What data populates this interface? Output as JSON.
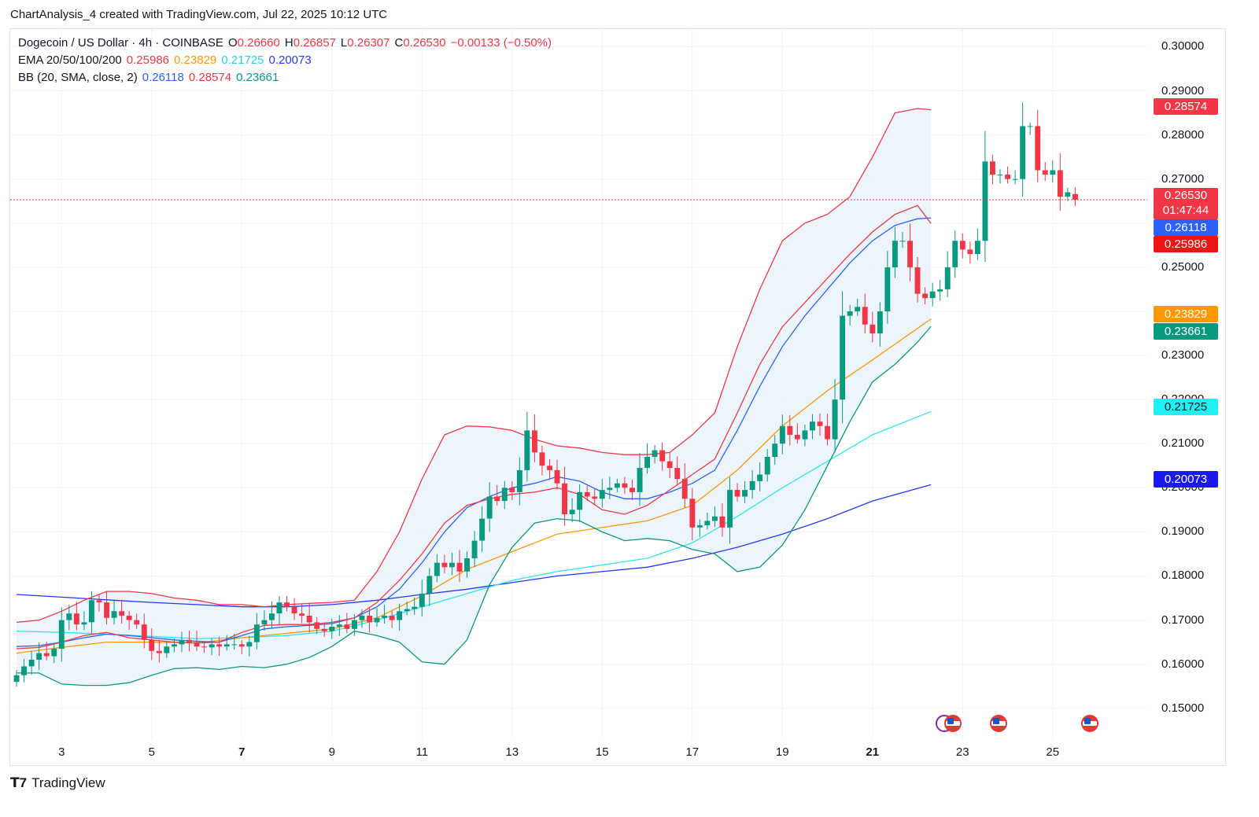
{
  "header": {
    "credit": "ChartAnalysis_4 created with TradingView.com, Jul 22, 2025 10:12 UTC"
  },
  "legend": {
    "symbol": "Dogecoin / US Dollar · 4h · COINBASE",
    "o_label": "O",
    "o_value": "0.26660",
    "h_label": "H",
    "h_value": "0.26857",
    "l_label": "L",
    "l_value": "0.26307",
    "c_label": "C",
    "c_value": "0.26530",
    "change": "−0.00133 (−0.50%)",
    "ema_label": "EMA 20/50/100/200",
    "ema20": "0.25986",
    "ema50": "0.23829",
    "ema100": "0.21725",
    "ema200": "0.20073",
    "bb_label": "BB (20, SMA, close, 2)",
    "bb_basis": "0.26118",
    "bb_upper": "0.28574",
    "bb_lower": "0.23661"
  },
  "price_labels": {
    "bb_upper": "0.28574",
    "last": "0.26530",
    "countdown": "01:47:44",
    "bb_basis": "0.26118",
    "ema20": "0.25986",
    "ema50": "0.23829",
    "bb_lower": "0.23661",
    "ema100": "0.21725",
    "ema200": "0.20073"
  },
  "colors": {
    "up": "#089981",
    "down": "#f23645",
    "ema20": "#f23645",
    "ema50": "#ff9800",
    "ema100": "#2ee6f0",
    "ema200": "#2736ff",
    "bb_basis": "#2962ff",
    "bb_upper": "#f23645",
    "bb_lower": "#089981",
    "bb_fill": "#eaf3fb"
  },
  "footer": {
    "brand": "TradingView"
  },
  "chart_data": {
    "type": "candlestick",
    "y_ticks": [
      "0.30000",
      "0.29000",
      "0.28000",
      "0.27000",
      "0.26000",
      "0.25000",
      "0.24000",
      "0.23000",
      "0.22000",
      "0.21000",
      "0.20000",
      "0.19000",
      "0.18000",
      "0.17000",
      "0.16000",
      "0.15000"
    ],
    "x_ticks": [
      {
        "label": "3",
        "day": 3,
        "bold": false
      },
      {
        "label": "5",
        "day": 5,
        "bold": false
      },
      {
        "label": "7",
        "day": 7,
        "bold": true
      },
      {
        "label": "9",
        "day": 9,
        "bold": false
      },
      {
        "label": "11",
        "day": 11,
        "bold": false
      },
      {
        "label": "13",
        "day": 13,
        "bold": false
      },
      {
        "label": "15",
        "day": 15,
        "bold": false
      },
      {
        "label": "17",
        "day": 17,
        "bold": false
      },
      {
        "label": "19",
        "day": 19,
        "bold": false
      },
      {
        "label": "21",
        "day": 21,
        "bold": true
      },
      {
        "label": "23",
        "day": 23,
        "bold": false
      },
      {
        "label": "25",
        "day": 25,
        "bold": false
      }
    ],
    "ylim": [
      0.143,
      0.304
    ],
    "xlim_days": [
      1.86,
      27.1
    ],
    "first_candle_day": 2.0,
    "candle_step_days": 0.16667,
    "last_price": 0.2653,
    "closes": [
      0.1575,
      0.1595,
      0.161,
      0.1625,
      0.1618,
      0.1635,
      0.17,
      0.1715,
      0.169,
      0.1695,
      0.1745,
      0.174,
      0.1705,
      0.172,
      0.171,
      0.17,
      0.169,
      0.1655,
      0.163,
      0.1625,
      0.164,
      0.1645,
      0.1655,
      0.165,
      0.164,
      0.1638,
      0.1645,
      0.164,
      0.1645,
      0.1645,
      0.164,
      0.165,
      0.169,
      0.17,
      0.1715,
      0.174,
      0.173,
      0.1715,
      0.171,
      0.1695,
      0.168,
      0.1675,
      0.1685,
      0.169,
      0.168,
      0.17,
      0.171,
      0.1695,
      0.1705,
      0.171,
      0.17,
      0.172,
      0.1725,
      0.173,
      0.176,
      0.18,
      0.183,
      0.182,
      0.183,
      0.181,
      0.184,
      0.188,
      0.193,
      0.198,
      0.197,
      0.2,
      0.199,
      0.204,
      0.213,
      0.208,
      0.205,
      0.204,
      0.201,
      0.194,
      0.195,
      0.199,
      0.198,
      0.1975,
      0.1995,
      0.2,
      0.201,
      0.2,
      0.199,
      0.2045,
      0.207,
      0.2085,
      0.206,
      0.2045,
      0.202,
      0.1975,
      0.191,
      0.1915,
      0.1925,
      0.1935,
      0.191,
      0.1995,
      0.198,
      0.1995,
      0.2015,
      0.203,
      0.207,
      0.21,
      0.214,
      0.212,
      0.211,
      0.213,
      0.215,
      0.214,
      0.211,
      0.22,
      0.239,
      0.24,
      0.241,
      0.237,
      0.235,
      0.24,
      0.25,
      0.256,
      0.256,
      0.25,
      0.244,
      0.243,
      0.2445,
      0.245,
      0.25,
      0.256,
      0.254,
      0.253,
      0.256,
      0.274,
      0.271,
      0.271,
      0.27,
      0.27,
      0.282,
      0.282,
      0.272,
      0.271,
      0.272,
      0.266,
      0.267,
      0.2653
    ],
    "ema20": [
      [
        2.0,
        0.1635
      ],
      [
        2.5,
        0.1638
      ],
      [
        3.0,
        0.165
      ],
      [
        3.5,
        0.1665
      ],
      [
        4.0,
        0.1672
      ],
      [
        4.5,
        0.166
      ],
      [
        5.0,
        0.1655
      ],
      [
        5.5,
        0.165
      ],
      [
        6.0,
        0.1648
      ],
      [
        6.5,
        0.165
      ],
      [
        7.0,
        0.1672
      ],
      [
        7.5,
        0.1688
      ],
      [
        8.0,
        0.169
      ],
      [
        8.5,
        0.169
      ],
      [
        9.0,
        0.1695
      ],
      [
        9.5,
        0.1705
      ],
      [
        10.0,
        0.174
      ],
      [
        10.5,
        0.179
      ],
      [
        11.0,
        0.185
      ],
      [
        11.5,
        0.192
      ],
      [
        12.0,
        0.196
      ],
      [
        12.5,
        0.1975
      ],
      [
        13.0,
        0.1985
      ],
      [
        13.5,
        0.199
      ],
      [
        14.0,
        0.2
      ],
      [
        14.5,
        0.1985
      ],
      [
        15.0,
        0.195
      ],
      [
        15.5,
        0.194
      ],
      [
        16.0,
        0.196
      ],
      [
        16.5,
        0.1995
      ],
      [
        17.0,
        0.203
      ],
      [
        17.5,
        0.2065
      ],
      [
        18.0,
        0.217
      ],
      [
        18.5,
        0.228
      ],
      [
        19.0,
        0.2365
      ],
      [
        19.5,
        0.242
      ],
      [
        20.0,
        0.2475
      ],
      [
        20.5,
        0.253
      ],
      [
        21.0,
        0.258
      ],
      [
        21.5,
        0.262
      ],
      [
        22.0,
        0.264
      ],
      [
        22.3,
        0.2599
      ]
    ],
    "ema50": [
      [
        2.0,
        0.1625
      ],
      [
        3.0,
        0.1638
      ],
      [
        4.0,
        0.165
      ],
      [
        5.0,
        0.165
      ],
      [
        6.0,
        0.1648
      ],
      [
        7.0,
        0.166
      ],
      [
        8.0,
        0.167
      ],
      [
        9.0,
        0.168
      ],
      [
        10.0,
        0.1705
      ],
      [
        11.0,
        0.1755
      ],
      [
        12.0,
        0.1815
      ],
      [
        13.0,
        0.1855
      ],
      [
        14.0,
        0.1895
      ],
      [
        15.0,
        0.191
      ],
      [
        16.0,
        0.1925
      ],
      [
        17.0,
        0.196
      ],
      [
        18.0,
        0.204
      ],
      [
        19.0,
        0.214
      ],
      [
        20.0,
        0.222
      ],
      [
        21.0,
        0.229
      ],
      [
        22.3,
        0.2383
      ]
    ],
    "ema100": [
      [
        2.0,
        0.1675
      ],
      [
        3.0,
        0.1672
      ],
      [
        4.0,
        0.1668
      ],
      [
        5.0,
        0.1663
      ],
      [
        6.0,
        0.1658
      ],
      [
        7.0,
        0.166
      ],
      [
        8.0,
        0.1665
      ],
      [
        9.0,
        0.1675
      ],
      [
        10.0,
        0.17
      ],
      [
        11.0,
        0.173
      ],
      [
        12.0,
        0.176
      ],
      [
        13.0,
        0.179
      ],
      [
        14.0,
        0.181
      ],
      [
        15.0,
        0.1825
      ],
      [
        16.0,
        0.184
      ],
      [
        17.0,
        0.1875
      ],
      [
        18.0,
        0.1935
      ],
      [
        19.0,
        0.2
      ],
      [
        20.0,
        0.206
      ],
      [
        21.0,
        0.212
      ],
      [
        22.3,
        0.2173
      ]
    ],
    "ema200": [
      [
        2.0,
        0.1758
      ],
      [
        3.0,
        0.1752
      ],
      [
        4.0,
        0.1746
      ],
      [
        5.0,
        0.174
      ],
      [
        6.0,
        0.1735
      ],
      [
        7.0,
        0.173
      ],
      [
        8.0,
        0.173
      ],
      [
        9.0,
        0.1735
      ],
      [
        10.0,
        0.1745
      ],
      [
        11.0,
        0.1758
      ],
      [
        12.0,
        0.177
      ],
      [
        13.0,
        0.1785
      ],
      [
        14.0,
        0.18
      ],
      [
        15.0,
        0.181
      ],
      [
        16.0,
        0.182
      ],
      [
        17.0,
        0.184
      ],
      [
        18.0,
        0.1865
      ],
      [
        19.0,
        0.1895
      ],
      [
        20.0,
        0.193
      ],
      [
        21.0,
        0.197
      ],
      [
        22.3,
        0.2007
      ]
    ],
    "bb_upper": [
      [
        2.0,
        0.1695
      ],
      [
        2.5,
        0.17
      ],
      [
        3.0,
        0.172
      ],
      [
        3.5,
        0.1745
      ],
      [
        4.0,
        0.1765
      ],
      [
        4.5,
        0.1765
      ],
      [
        5.0,
        0.176
      ],
      [
        5.5,
        0.175
      ],
      [
        6.0,
        0.1745
      ],
      [
        6.5,
        0.1735
      ],
      [
        7.0,
        0.1735
      ],
      [
        7.5,
        0.173
      ],
      [
        8.0,
        0.1735
      ],
      [
        8.5,
        0.1738
      ],
      [
        9.0,
        0.174
      ],
      [
        9.5,
        0.1745
      ],
      [
        10.0,
        0.181
      ],
      [
        10.5,
        0.19
      ],
      [
        11.0,
        0.202
      ],
      [
        11.5,
        0.212
      ],
      [
        12.0,
        0.214
      ],
      [
        12.5,
        0.2138
      ],
      [
        13.0,
        0.213
      ],
      [
        13.5,
        0.211
      ],
      [
        14.0,
        0.2095
      ],
      [
        14.5,
        0.209
      ],
      [
        15.0,
        0.208
      ],
      [
        15.5,
        0.2075
      ],
      [
        16.0,
        0.2075
      ],
      [
        16.5,
        0.208
      ],
      [
        17.0,
        0.212
      ],
      [
        17.5,
        0.217
      ],
      [
        18.0,
        0.232
      ],
      [
        18.5,
        0.245
      ],
      [
        19.0,
        0.256
      ],
      [
        19.5,
        0.26
      ],
      [
        20.0,
        0.262
      ],
      [
        20.5,
        0.266
      ],
      [
        21.0,
        0.275
      ],
      [
        21.5,
        0.285
      ],
      [
        22.0,
        0.286
      ],
      [
        22.3,
        0.2857
      ]
    ],
    "bb_basis": [
      [
        2.0,
        0.164
      ],
      [
        2.5,
        0.1642
      ],
      [
        3.0,
        0.165
      ],
      [
        3.5,
        0.166
      ],
      [
        4.0,
        0.1668
      ],
      [
        4.5,
        0.1665
      ],
      [
        5.0,
        0.166
      ],
      [
        5.5,
        0.1655
      ],
      [
        6.0,
        0.1652
      ],
      [
        6.5,
        0.165
      ],
      [
        7.0,
        0.1665
      ],
      [
        7.5,
        0.168
      ],
      [
        8.0,
        0.1685
      ],
      [
        8.5,
        0.1688
      ],
      [
        9.0,
        0.1692
      ],
      [
        9.5,
        0.1705
      ],
      [
        10.0,
        0.173
      ],
      [
        10.5,
        0.177
      ],
      [
        11.0,
        0.183
      ],
      [
        11.5,
        0.19
      ],
      [
        12.0,
        0.1955
      ],
      [
        12.5,
        0.198
      ],
      [
        13.0,
        0.2
      ],
      [
        13.5,
        0.201
      ],
      [
        14.0,
        0.2025
      ],
      [
        14.5,
        0.2015
      ],
      [
        15.0,
        0.199
      ],
      [
        15.5,
        0.1975
      ],
      [
        16.0,
        0.1975
      ],
      [
        16.5,
        0.199
      ],
      [
        17.0,
        0.201
      ],
      [
        17.5,
        0.204
      ],
      [
        18.0,
        0.213
      ],
      [
        18.5,
        0.223
      ],
      [
        19.0,
        0.232
      ],
      [
        19.5,
        0.239
      ],
      [
        20.0,
        0.245
      ],
      [
        20.5,
        0.251
      ],
      [
        21.0,
        0.256
      ],
      [
        21.5,
        0.2595
      ],
      [
        22.0,
        0.261
      ],
      [
        22.3,
        0.2612
      ]
    ],
    "bb_lower": [
      [
        2.0,
        0.158
      ],
      [
        2.5,
        0.158
      ],
      [
        3.0,
        0.1555
      ],
      [
        3.5,
        0.1552
      ],
      [
        4.0,
        0.1552
      ],
      [
        4.5,
        0.1558
      ],
      [
        5.0,
        0.1575
      ],
      [
        5.5,
        0.159
      ],
      [
        6.0,
        0.1592
      ],
      [
        6.5,
        0.1588
      ],
      [
        7.0,
        0.1595
      ],
      [
        7.5,
        0.1592
      ],
      [
        8.0,
        0.16
      ],
      [
        8.5,
        0.1615
      ],
      [
        9.0,
        0.164
      ],
      [
        9.5,
        0.1675
      ],
      [
        10.0,
        0.1665
      ],
      [
        10.5,
        0.165
      ],
      [
        11.0,
        0.1605
      ],
      [
        11.5,
        0.16
      ],
      [
        12.0,
        0.1655
      ],
      [
        12.5,
        0.178
      ],
      [
        13.0,
        0.1865
      ],
      [
        13.5,
        0.192
      ],
      [
        14.0,
        0.193
      ],
      [
        14.5,
        0.1925
      ],
      [
        15.0,
        0.19
      ],
      [
        15.5,
        0.188
      ],
      [
        16.0,
        0.1885
      ],
      [
        16.5,
        0.188
      ],
      [
        17.0,
        0.186
      ],
      [
        17.5,
        0.185
      ],
      [
        18.0,
        0.181
      ],
      [
        18.5,
        0.182
      ],
      [
        19.0,
        0.187
      ],
      [
        19.5,
        0.195
      ],
      [
        20.0,
        0.205
      ],
      [
        20.5,
        0.215
      ],
      [
        21.0,
        0.224
      ],
      [
        21.5,
        0.228
      ],
      [
        22.0,
        0.233
      ],
      [
        22.3,
        0.2366
      ]
    ]
  }
}
